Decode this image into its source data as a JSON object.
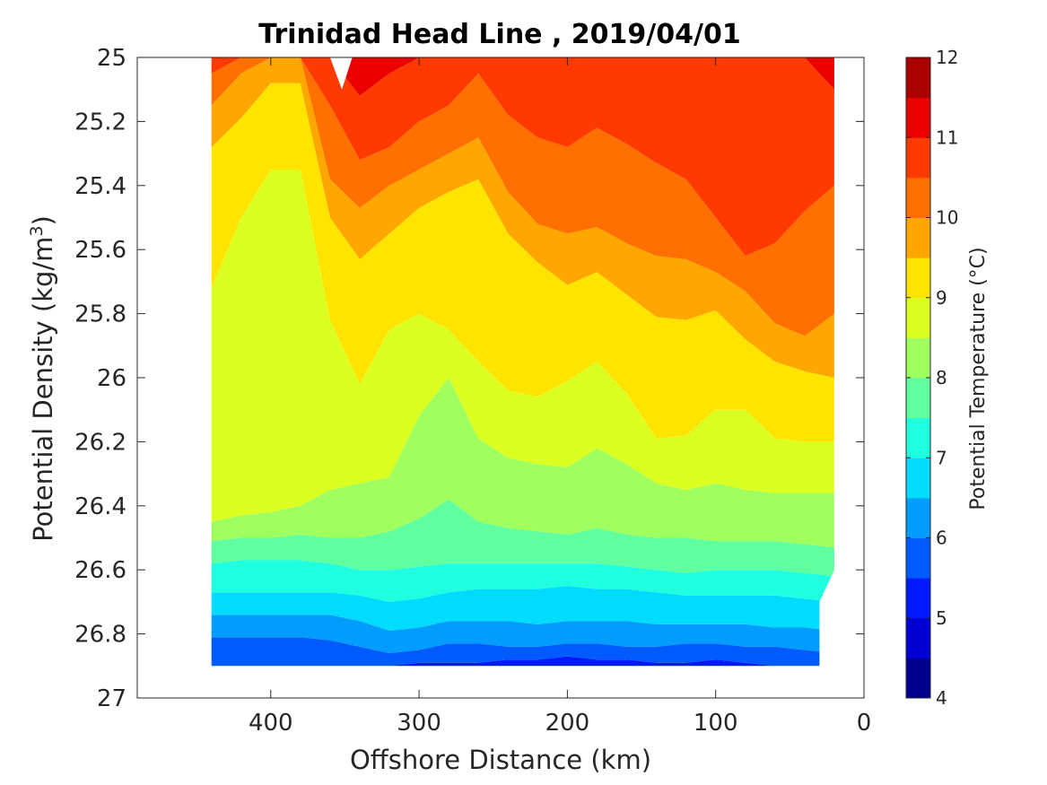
{
  "chart_data": {
    "type": "contour",
    "title": "Trinidad Head Line , 2019/04/01",
    "xlabel": "Offshore Distance (km)",
    "ylabel_prefix": "Potential Density (kg/m",
    "ylabel_sup": "3",
    "ylabel_suffix": ")",
    "xlim": [
      490,
      0
    ],
    "x_reversed": true,
    "ylim": [
      25,
      27
    ],
    "y_reversed": true,
    "xticks": [
      400,
      300,
      200,
      100,
      0
    ],
    "xtick_labels": [
      "400",
      "300",
      "200",
      "100",
      "0"
    ],
    "yticks": [
      25,
      25.2,
      25.4,
      25.6,
      25.8,
      26,
      26.2,
      26.4,
      26.6,
      26.8,
      27
    ],
    "ytick_labels": [
      "25",
      "25.2",
      "25.4",
      "25.6",
      "25.8",
      "26",
      "26.2",
      "26.4",
      "26.6",
      "26.8",
      "27"
    ],
    "colorbar": {
      "label": "Potential Temperature (°C)",
      "range": [
        4,
        12
      ],
      "ticks": [
        4,
        5,
        6,
        7,
        8,
        9,
        10,
        11,
        12
      ],
      "tick_labels": [
        "4",
        "5",
        "6",
        "7",
        "8",
        "9",
        "10",
        "11",
        "12"
      ],
      "levels": [
        4,
        4.5,
        5,
        5.5,
        6,
        6.5,
        7,
        7.5,
        8,
        8.5,
        9,
        9.5,
        10,
        10.5,
        11,
        11.5,
        12
      ],
      "colors": [
        "#00008f",
        "#0000d4",
        "#0019ff",
        "#005bff",
        "#009cff",
        "#00dcff",
        "#1fffdf",
        "#5fff9f",
        "#9fff5f",
        "#dcff22",
        "#ffe400",
        "#ffa600",
        "#ff7000",
        "#ff3a00",
        "#eb0000",
        "#ab0000"
      ]
    },
    "contour_boundaries_density": {
      "x": [
        440,
        420,
        400,
        380,
        360,
        340,
        320,
        300,
        280,
        260,
        240,
        220,
        200,
        180,
        160,
        140,
        120,
        100,
        80,
        60,
        40,
        20
      ],
      "b_4_5": [
        26.95,
        26.95,
        26.95,
        26.95,
        26.95,
        26.95,
        26.95,
        26.95,
        26.95,
        26.95,
        26.95,
        26.95,
        26.95,
        26.95,
        26.95,
        26.95,
        26.95,
        26.95,
        26.95,
        26.95,
        26.95,
        26.95
      ],
      "b_5_5_5": [
        26.9,
        26.9,
        26.9,
        26.9,
        26.9,
        26.9,
        26.9,
        26.89,
        26.89,
        26.89,
        26.88,
        26.88,
        26.87,
        26.88,
        26.88,
        26.89,
        26.89,
        26.88,
        26.89,
        26.9,
        26.9,
        26.9
      ],
      "b_5_5_6": [
        26.81,
        26.81,
        26.81,
        26.81,
        26.82,
        26.84,
        26.86,
        26.85,
        26.83,
        26.83,
        26.84,
        26.84,
        26.83,
        26.83,
        26.84,
        26.84,
        26.83,
        26.83,
        26.84,
        26.84,
        26.85,
        26.86
      ],
      "b_6_6_5": [
        26.74,
        26.74,
        26.74,
        26.74,
        26.74,
        26.76,
        26.79,
        26.78,
        26.76,
        26.76,
        26.76,
        26.77,
        26.76,
        26.76,
        26.76,
        26.77,
        26.77,
        26.77,
        26.77,
        26.78,
        26.78,
        26.79
      ],
      "b_6_5_7": [
        26.67,
        26.67,
        26.67,
        26.67,
        26.67,
        26.68,
        26.7,
        26.69,
        26.67,
        26.66,
        26.66,
        26.66,
        26.65,
        26.66,
        26.66,
        26.67,
        26.68,
        26.68,
        26.68,
        26.68,
        26.69,
        26.7
      ],
      "b_7_7_5": [
        26.58,
        26.57,
        26.57,
        26.57,
        26.58,
        26.6,
        26.6,
        26.59,
        26.58,
        26.58,
        26.58,
        26.58,
        26.58,
        26.58,
        26.59,
        26.6,
        26.61,
        26.6,
        26.6,
        26.6,
        26.61,
        26.62
      ],
      "b_7_5_8": [
        26.51,
        26.5,
        26.5,
        26.49,
        26.5,
        26.5,
        26.48,
        26.44,
        26.38,
        26.45,
        26.47,
        26.48,
        26.49,
        26.47,
        26.49,
        26.5,
        26.5,
        26.51,
        26.51,
        26.51,
        26.52,
        26.53
      ],
      "b_8_8_5": [
        26.45,
        26.43,
        26.42,
        26.4,
        26.35,
        26.33,
        26.31,
        26.12,
        26.0,
        26.19,
        26.25,
        26.27,
        26.28,
        26.22,
        26.27,
        26.33,
        26.35,
        26.33,
        26.35,
        26.36,
        26.36,
        26.36
      ],
      "b_8_5_9": [
        25.72,
        25.5,
        25.35,
        25.35,
        25.82,
        26.02,
        25.85,
        25.8,
        25.85,
        25.95,
        26.04,
        26.06,
        26.01,
        25.95,
        26.05,
        26.19,
        26.18,
        26.1,
        26.1,
        26.19,
        26.2,
        26.2
      ],
      "b_9_9_5": [
        25.28,
        25.19,
        25.08,
        25.08,
        25.5,
        25.63,
        25.55,
        25.47,
        25.42,
        25.38,
        25.55,
        25.64,
        25.71,
        25.67,
        25.74,
        25.81,
        25.82,
        25.79,
        25.88,
        25.95,
        25.98,
        26.0
      ],
      "b_9_5_10": [
        25.15,
        25.05,
        25.0,
        25.0,
        25.38,
        25.47,
        25.4,
        25.35,
        25.3,
        25.25,
        25.42,
        25.52,
        25.55,
        25.53,
        25.58,
        25.62,
        25.63,
        25.67,
        25.73,
        25.83,
        25.87,
        25.8
      ],
      "b_10_10_5": [
        25.05,
        25.0,
        25.0,
        25.0,
        25.15,
        25.32,
        25.28,
        25.2,
        25.15,
        25.05,
        25.18,
        25.25,
        25.28,
        25.22,
        25.27,
        25.33,
        25.38,
        25.5,
        25.62,
        25.58,
        25.48,
        25.4
      ],
      "b_10_5_11": [
        25.0,
        25.0,
        25.0,
        25.0,
        25.0,
        25.12,
        25.05,
        25.0,
        25.0,
        25.0,
        25.0,
        25.0,
        25.0,
        25.0,
        25.0,
        25.0,
        25.0,
        25.0,
        25.0,
        25.0,
        25.0,
        25.1
      ]
    }
  }
}
